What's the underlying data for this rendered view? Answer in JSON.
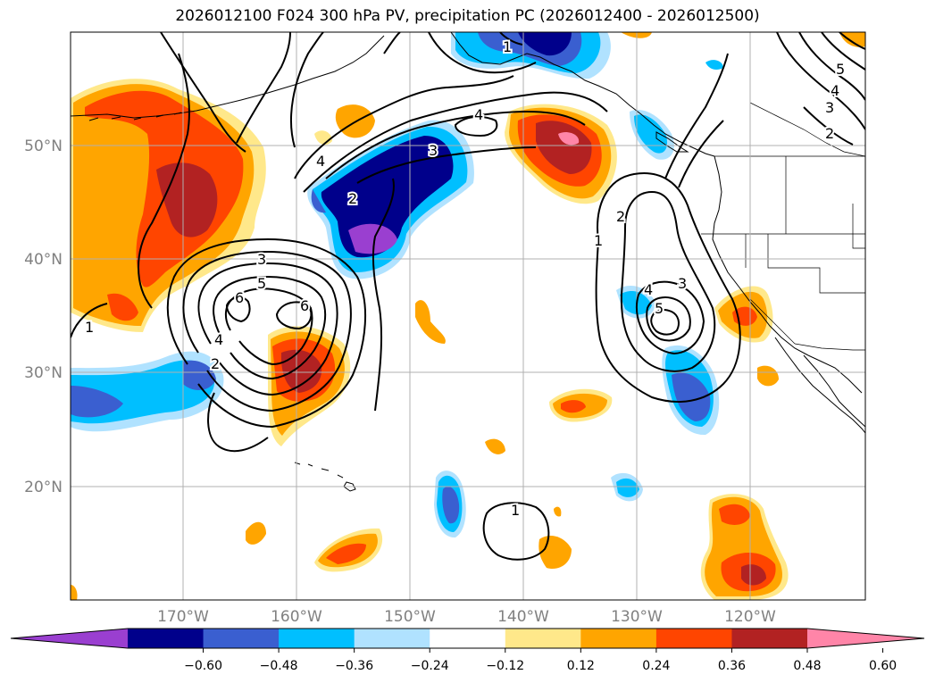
{
  "title": "2026012100 F024 300 hPa PV, precipitation PC (2026012400 - 2026012500)",
  "map": {
    "lon_labels": [
      "170°W",
      "160°W",
      "150°W",
      "140°W",
      "130°W",
      "120°W"
    ],
    "lat_labels": [
      "50°N",
      "40°N",
      "30°N",
      "20°N"
    ],
    "pv_contour_labels": [
      "1",
      "4",
      "5",
      "4",
      "3",
      "2",
      "4",
      "3",
      "2",
      "3",
      "5",
      "6",
      "6",
      "4",
      "2",
      "1",
      "2",
      "4",
      "3",
      "5",
      "1",
      "1"
    ]
  },
  "colorbar": {
    "ticks": [
      "−0.60",
      "−0.48",
      "−0.36",
      "−0.24",
      "−0.12",
      "0.12",
      "0.24",
      "0.36",
      "0.48",
      "0.60"
    ],
    "colors": [
      "#9a3fd0",
      "#00008b",
      "#3a5fd0",
      "#00bfff",
      "#b0e2ff",
      "#ffffff",
      "#ffe88a",
      "#ffa500",
      "#ff4500",
      "#b22222",
      "#ff85a8"
    ],
    "extend": "both"
  }
}
